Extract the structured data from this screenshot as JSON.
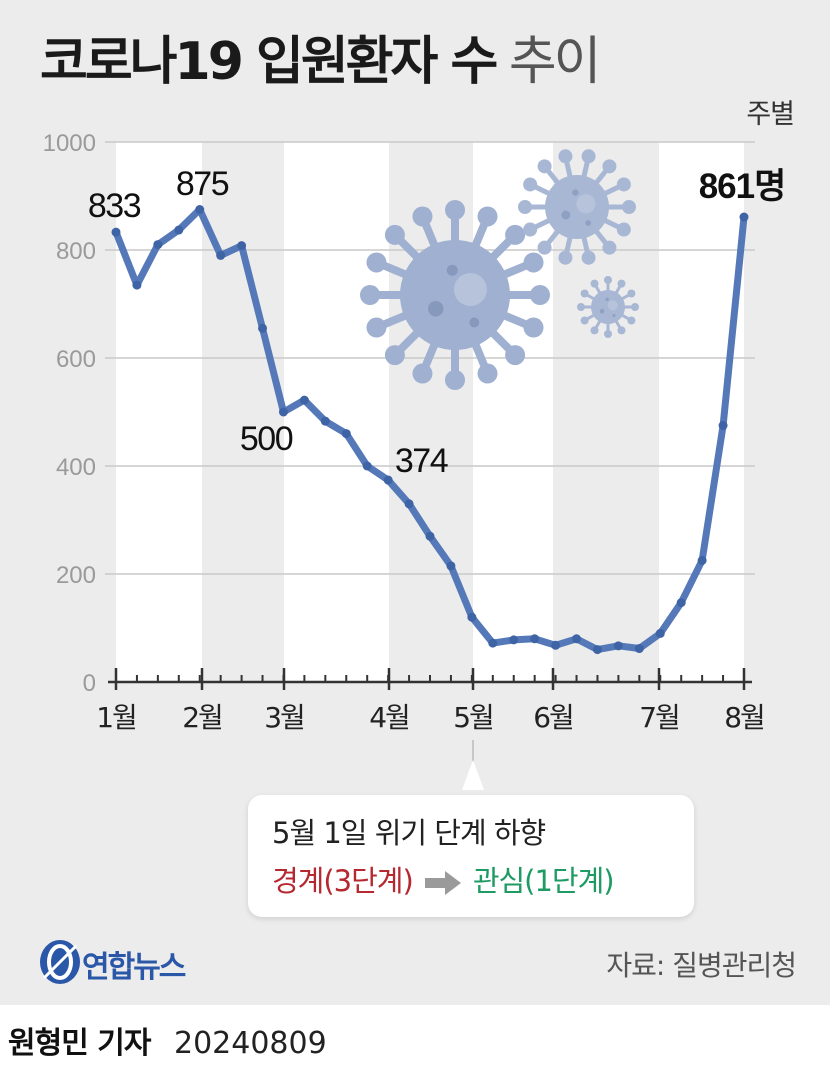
{
  "title": {
    "strong": "코로나19 입원환자 수",
    "light": "추이"
  },
  "unit_label": "주별",
  "chart_data": {
    "type": "line",
    "title": "코로나19 입원환자 수 추이",
    "ylim": [
      0,
      1000
    ],
    "yticks": [
      0,
      200,
      400,
      600,
      800,
      1000
    ],
    "grid": true,
    "x_month_labels": [
      "1월",
      "2월",
      "3월",
      "4월",
      "5월",
      "6월",
      "7월",
      "8월"
    ],
    "series": [
      {
        "color": "#5579b8",
        "values": [
          833,
          735,
          810,
          837,
          875,
          790,
          808,
          655,
          500,
          522,
          483,
          460,
          400,
          374,
          330,
          270,
          215,
          120,
          72,
          78,
          80,
          68,
          80,
          60,
          67,
          62,
          90,
          147,
          225,
          475,
          861
        ]
      }
    ],
    "annotations": [
      {
        "index": 0,
        "text": "833"
      },
      {
        "index": 4,
        "text": "875"
      },
      {
        "index": 8,
        "text": "500"
      },
      {
        "index": 13,
        "text": "374"
      },
      {
        "index": 30,
        "text": "861명"
      }
    ]
  },
  "callout": {
    "line1": "5월 1일 위기 단계 하향",
    "from": "경계(3단계)",
    "to": "관심(1단계)"
  },
  "logo_text": "연합뉴스",
  "source": "자료: 질병관리청",
  "byline": {
    "name": "원형민 기자",
    "date": "20240809"
  },
  "icons": [
    "virus-icon-large",
    "virus-icon-medium",
    "virus-icon-small",
    "arrow-right-icon",
    "yonhap-logo-icon"
  ]
}
